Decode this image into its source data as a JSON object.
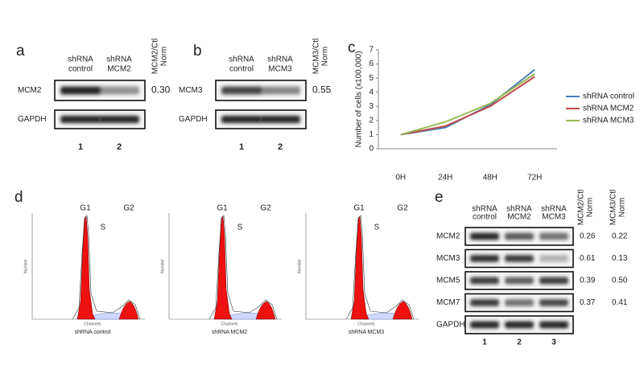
{
  "panel_labels": [
    "a",
    "b",
    "c",
    "d",
    "e"
  ],
  "panel_a": {
    "columns": [
      [
        "shRNA",
        "control"
      ],
      [
        "shRNA",
        "MCM2"
      ]
    ],
    "norm_header": [
      "MCM2/Ctl",
      "Norm"
    ],
    "rows": [
      {
        "label": "MCM2",
        "norm": "0.30"
      },
      {
        "label": "GAPDH"
      }
    ],
    "lanes": [
      "1",
      "2"
    ]
  },
  "panel_b": {
    "columns": [
      [
        "shRNA",
        "control"
      ],
      [
        "shRNA",
        "MCM3"
      ]
    ],
    "norm_header": [
      "MCM3/Ctl",
      "Norm"
    ],
    "rows": [
      {
        "label": "MCM3",
        "norm": "0.55"
      },
      {
        "label": "GAPDH"
      }
    ],
    "lanes": [
      "1",
      "2"
    ]
  },
  "chart_data": {
    "type": "line",
    "y_label": "Number of cells (x100,000)",
    "categories": [
      "0H",
      "24H",
      "48H",
      "72H"
    ],
    "series": [
      {
        "name": "shRNA control",
        "color": "#4a7ebb",
        "values": [
          1,
          1.5,
          3.1,
          5.6
        ]
      },
      {
        "name": "shRNA MCM2",
        "color": "#be4b48",
        "values": [
          1,
          1.6,
          3.0,
          5.1
        ]
      },
      {
        "name": "shRNA MCM3",
        "color": "#98b954",
        "values": [
          1,
          1.9,
          3.2,
          5.3
        ]
      }
    ],
    "ylim": [
      0,
      7
    ],
    "yticks": [
      0,
      1,
      2,
      3,
      4,
      5,
      6,
      7
    ]
  },
  "panel_d": {
    "histograms": [
      {
        "caption": "shRNA control"
      },
      {
        "caption": "shRNA MCM2"
      },
      {
        "caption": "shRNA MCM3"
      }
    ],
    "peak_labels": [
      "G1",
      "S",
      "G2"
    ],
    "x_label": "Channels",
    "y_label": "Number"
  },
  "panel_e": {
    "columns": [
      [
        "shRNA",
        "control"
      ],
      [
        "shRNA",
        "MCM2"
      ],
      [
        "shRNA",
        "MCM3"
      ]
    ],
    "norm_headers": [
      [
        "MCM2/Ctl",
        "Norm"
      ],
      [
        "MCM3/Ctl",
        "Norm"
      ]
    ],
    "rows": [
      {
        "label": "MCM2",
        "norms": [
          "0.26",
          "0.22"
        ]
      },
      {
        "label": "MCM3",
        "norms": [
          "0.61",
          "0.13"
        ]
      },
      {
        "label": "MCM5",
        "norms": [
          "0.39",
          "0.50"
        ]
      },
      {
        "label": "MCM7",
        "norms": [
          "0.37",
          "0.41"
        ]
      },
      {
        "label": "GAPDH"
      }
    ],
    "lanes": [
      "1",
      "2",
      "3"
    ]
  }
}
